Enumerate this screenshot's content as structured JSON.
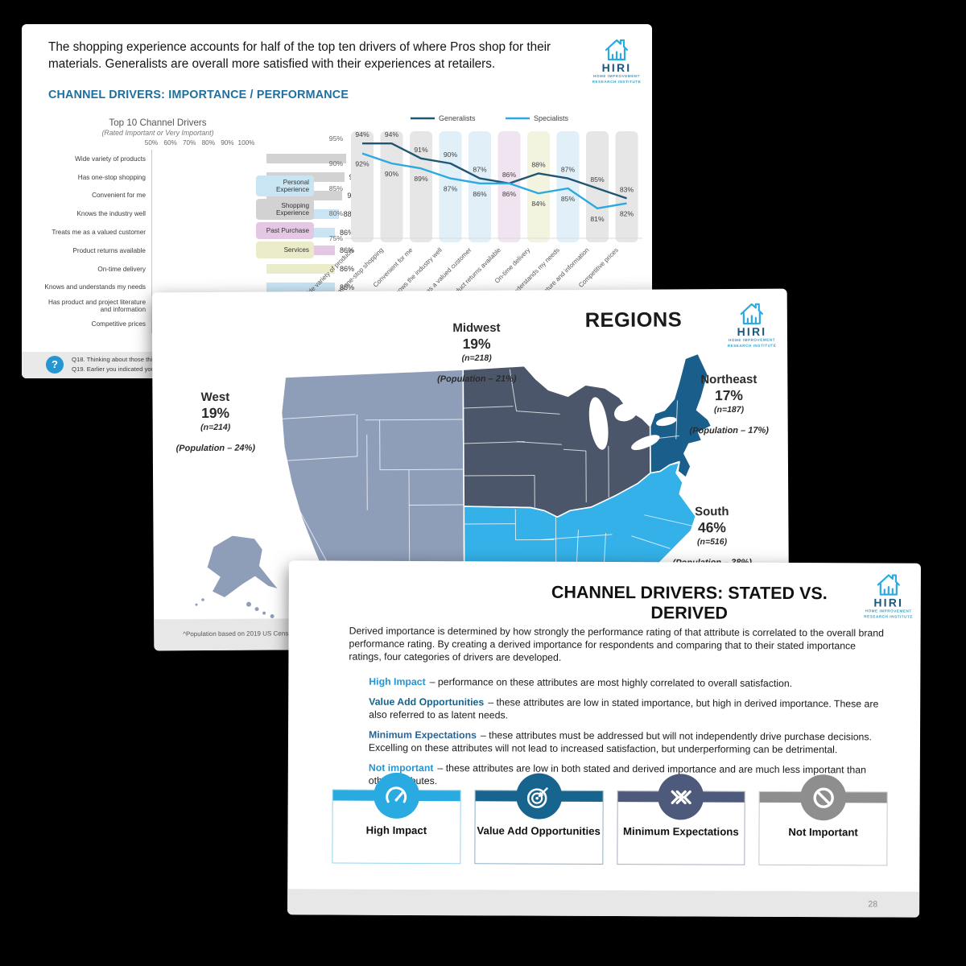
{
  "logo": {
    "text": "HIRI",
    "tagline1": "HOME IMPROVEMENT",
    "tagline2": "RESEARCH INSTITUTE",
    "house_color": "#29ABE2",
    "text_color": "#1A567E",
    "tagline_color": "#3E9DC4"
  },
  "slide1": {
    "headline": "The shopping experience accounts for half of the top ten drivers of where Pros shop for their materials. Generalists are overall more satisfied with their experiences at retailers.",
    "subtitle": "CHANNEL DRIVERS: IMPORTANCE / PERFORMANCE",
    "subtitle_color": "#1C6F9E",
    "legend": [
      {
        "label": "Personal Experience",
        "color": "#C9E5F4",
        "tall": true
      },
      {
        "label": "Shopping Experience",
        "color": "#D2D2D2",
        "tall": true
      },
      {
        "label": "Past Purchase",
        "color": "#E3C7E3",
        "tall": false
      },
      {
        "label": "Services",
        "color": "#EAEBC8",
        "tall": false
      }
    ],
    "footnote_lines": [
      "Q18. Thinking about those things that",
      "Q19. Earlier you indicated you used ["
    ],
    "question_icon_color": "#2596D1"
  },
  "chart_data": [
    {
      "type": "bar",
      "orientation": "horizontal",
      "title": "Top 10 Channel Drivers",
      "subtitle": "(Rated Important or Very Important)",
      "axis_ticks": [
        "50%",
        "60%",
        "70%",
        "80%",
        "90%",
        "100%"
      ],
      "xlim": [
        50,
        100
      ],
      "categories": [
        "Wide variety of products",
        "Has one-stop shopping",
        "Convenient for me",
        "Knows the industry well",
        "Treats me as a valued customer",
        "Product returns available",
        "On-time delivery",
        "Knows and understands my needs",
        "Has product and project literature and information",
        "Competitive prices"
      ],
      "values": [
        92,
        91,
        90,
        88,
        86,
        86,
        86,
        86,
        null,
        null
      ],
      "value_labels": [
        "92%",
        "91%",
        "90%",
        "88%",
        "86%",
        "86%",
        "86%",
        "86%",
        "",
        ""
      ],
      "groups": [
        "shopping",
        "shopping",
        "shopping",
        "personal",
        "personal",
        "past",
        "services",
        "personal",
        "shopping",
        "shopping"
      ],
      "group_colors": {
        "personal": "#C9E5F4",
        "shopping": "#D2D2D2",
        "past": "#E3C7E3",
        "services": "#EAEBC8"
      }
    },
    {
      "type": "line",
      "categories": [
        "Wide variety of products",
        "Has one-stop shopping",
        "Convenient for me",
        "Knows the industry well",
        "Treats me as a valued customer",
        "Product returns available",
        "On-time delivery",
        "Knows and understands my needs",
        "Has product and project literature and information",
        "Competitive prices"
      ],
      "series": [
        {
          "name": "Generalists",
          "color": "#1F5673",
          "values": [
            94,
            94,
            91,
            90,
            87,
            86,
            88,
            87,
            85,
            83
          ]
        },
        {
          "name": "Specialists",
          "color": "#2BA9E0",
          "values": [
            92,
            90,
            89,
            87,
            86,
            86,
            84,
            85,
            81,
            82
          ]
        }
      ],
      "ylim": [
        75,
        95
      ],
      "yticks": [
        "95%",
        "90%",
        "85%",
        "80%",
        "75%"
      ],
      "band_groups": [
        "shopping",
        "shopping",
        "shopping",
        "personal",
        "personal",
        "past",
        "services",
        "personal",
        "shopping",
        "shopping"
      ],
      "band_colors": {
        "personal": "#E1EFF8",
        "shopping": "#E6E6E6",
        "past": "#F1E4F1",
        "services": "#F3F4DF"
      },
      "legend_position": "top"
    }
  ],
  "slide2": {
    "title": "REGIONS",
    "map_colors": {
      "west": "#8E9DB8",
      "midwest": "#4B566B",
      "northeast": "#1A5E8C",
      "south": "#33B1E8"
    },
    "regions": [
      {
        "id": "west",
        "name": "West",
        "pct": "19%",
        "n": "(n=214)",
        "population": "(Population – 24%)"
      },
      {
        "id": "midwest",
        "name": "Midwest",
        "pct": "19%",
        "n": "(n=218)",
        "population": "(Population – 21%)"
      },
      {
        "id": "northeast",
        "name": "Northeast",
        "pct": "17%",
        "n": "(n=187)",
        "population": "(Population – 17%)"
      },
      {
        "id": "south",
        "name": "South",
        "pct": "46%",
        "n": "(n=516)",
        "population": "(Population – 38%)"
      }
    ],
    "footnote": "^Population based on 2019 US Census estima"
  },
  "slide3": {
    "title": "CHANNEL DRIVERS: STATED VS. DERIVED",
    "intro": "Derived importance is determined by how strongly the performance rating of that attribute is correlated to the overall brand performance rating. By creating a derived importance for respondents and comparing that to their stated importance ratings, four categories of drivers are developed.",
    "bullets": [
      {
        "lead": "High Impact",
        "lead_color": "#2596D1",
        "text": "– performance on these attributes  are  most highly correlated to overall satisfaction."
      },
      {
        "lead": "Value Add Opportunities",
        "lead_color": "#16638E",
        "text": "– these attributes are low in stated importance, but high in derived importance.  These are also referred to as latent needs."
      },
      {
        "lead": "Minimum Expectations",
        "lead_color": "#2A6496",
        "text": "– these attributes must be addressed but will not independently drive purchase decisions. Excelling on these attributes will not lead to increased satisfaction, but underperforming can be detrimental."
      },
      {
        "lead": "Not important",
        "lead_color": "#2596D1",
        "text": "– these attributes are low in both stated and derived importance and are much less important than other attributes."
      }
    ],
    "cards": [
      {
        "label": "High Impact",
        "color": "#29ABE2",
        "icon": "gauge-icon"
      },
      {
        "label": "Value Add Opportunities",
        "color": "#17648F",
        "icon": "target-icon"
      },
      {
        "label": "Minimum Expectations",
        "color": "#4D5A7B",
        "icon": "converging-arrows-icon"
      },
      {
        "label": "Not Important",
        "color": "#8E8E8E",
        "icon": "no-symbol-icon"
      }
    ],
    "page_number": "28"
  }
}
